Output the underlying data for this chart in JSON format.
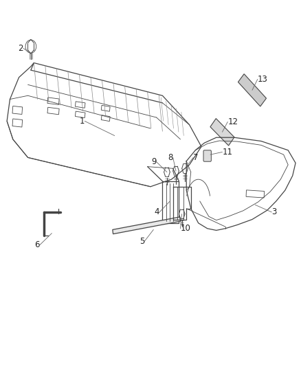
{
  "bg_color": "#ffffff",
  "line_color": "#444444",
  "label_color": "#222222",
  "figsize": [
    4.38,
    5.33
  ],
  "dpi": 100,
  "parts": {
    "bumper_outer": {
      "x": [
        0.02,
        0.05,
        0.08,
        0.12,
        0.55,
        0.64,
        0.67,
        0.62,
        0.55,
        0.48,
        0.08,
        0.03,
        0.02
      ],
      "y": [
        0.72,
        0.77,
        0.8,
        0.82,
        0.73,
        0.65,
        0.6,
        0.55,
        0.52,
        0.49,
        0.57,
        0.63,
        0.68
      ]
    },
    "bumper_top_inner": {
      "x": [
        0.08,
        0.12,
        0.55,
        0.62
      ],
      "y": [
        0.79,
        0.81,
        0.72,
        0.64
      ]
    },
    "bumper_bottom_inner": {
      "x": [
        0.08,
        0.48,
        0.55
      ],
      "y": [
        0.6,
        0.51,
        0.54
      ]
    }
  }
}
